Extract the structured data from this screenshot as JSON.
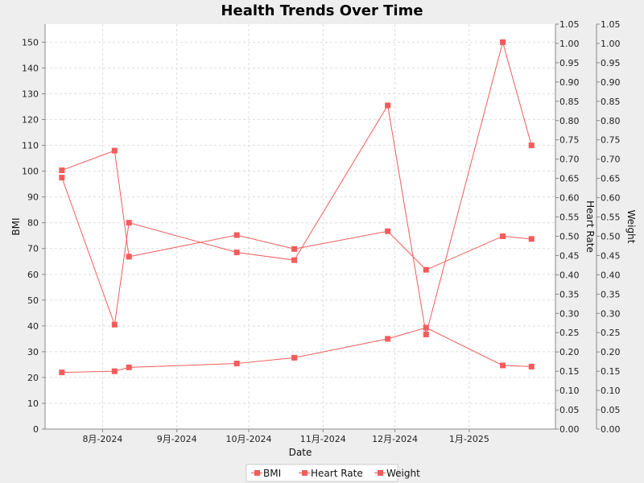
{
  "chart_data": {
    "type": "line",
    "title": "Health Trends Over Time",
    "xlabel": "Date",
    "x": [
      "2024-07-15",
      "2024-08-06",
      "2024-08-12",
      "2024-09-26",
      "2024-10-20",
      "2024-11-28",
      "2024-12-14",
      "2025-01-15",
      "2025-01-27"
    ],
    "x_ticks": [
      {
        "date": "2024-08-01",
        "label": "8月-2024"
      },
      {
        "date": "2024-09-01",
        "label": "9月-2024"
      },
      {
        "date": "2024-10-01",
        "label": "10月-2024"
      },
      {
        "date": "2024-11-01",
        "label": "11月-2024"
      },
      {
        "date": "2024-12-01",
        "label": "12月-2024"
      },
      {
        "date": "2025-01-01",
        "label": "1月-2025"
      }
    ],
    "xlim": [
      "2024-07-08",
      "2025-02-06"
    ],
    "grid": true,
    "legend_position": "bottom-center",
    "axes": [
      {
        "id": "bmi",
        "label": "BMI",
        "side": "left",
        "ylim": [
          0,
          157
        ],
        "ticks": [
          0,
          10,
          20,
          30,
          40,
          50,
          60,
          70,
          80,
          90,
          100,
          110,
          120,
          130,
          140,
          150
        ]
      },
      {
        "id": "hr",
        "label": "Heart Rate",
        "side": "right",
        "ylim": [
          0,
          1.05
        ],
        "ticks": [
          "0.00",
          "0.05",
          "0.10",
          "0.15",
          "0.20",
          "0.25",
          "0.30",
          "0.35",
          "0.40",
          "0.45",
          "0.50",
          "0.55",
          "0.60",
          "0.65",
          "0.70",
          "0.75",
          "0.80",
          "0.85",
          "0.90",
          "0.95",
          "1.00",
          "1.05"
        ]
      },
      {
        "id": "wt",
        "label": "Weight",
        "side": "right",
        "ylim": [
          0,
          1.05
        ],
        "ticks": [
          "0.00",
          "0.05",
          "0.10",
          "0.15",
          "0.20",
          "0.25",
          "0.30",
          "0.35",
          "0.40",
          "0.45",
          "0.50",
          "0.55",
          "0.60",
          "0.65",
          "0.70",
          "0.75",
          "0.80",
          "0.85",
          "0.90",
          "0.95",
          "1.00",
          "1.05"
        ]
      }
    ],
    "series": [
      {
        "name": "BMI",
        "axis": "bmi",
        "color": "#f45b5b",
        "values": [
          97.5,
          40.5,
          80.0,
          68.5,
          65.5,
          125.5,
          36.7,
          150.0,
          110.0
        ]
      },
      {
        "name": "Heart Rate",
        "axis": "hr",
        "color": "#f45b5b",
        "values": [
          0.671,
          0.722,
          0.447,
          0.503,
          0.467,
          0.513,
          0.413,
          0.5,
          0.493
        ]
      },
      {
        "name": "Weight",
        "axis": "wt",
        "color": "#f45b5b",
        "values": [
          0.147,
          0.15,
          0.16,
          0.17,
          0.185,
          0.234,
          0.263,
          0.165,
          0.162
        ]
      }
    ]
  }
}
